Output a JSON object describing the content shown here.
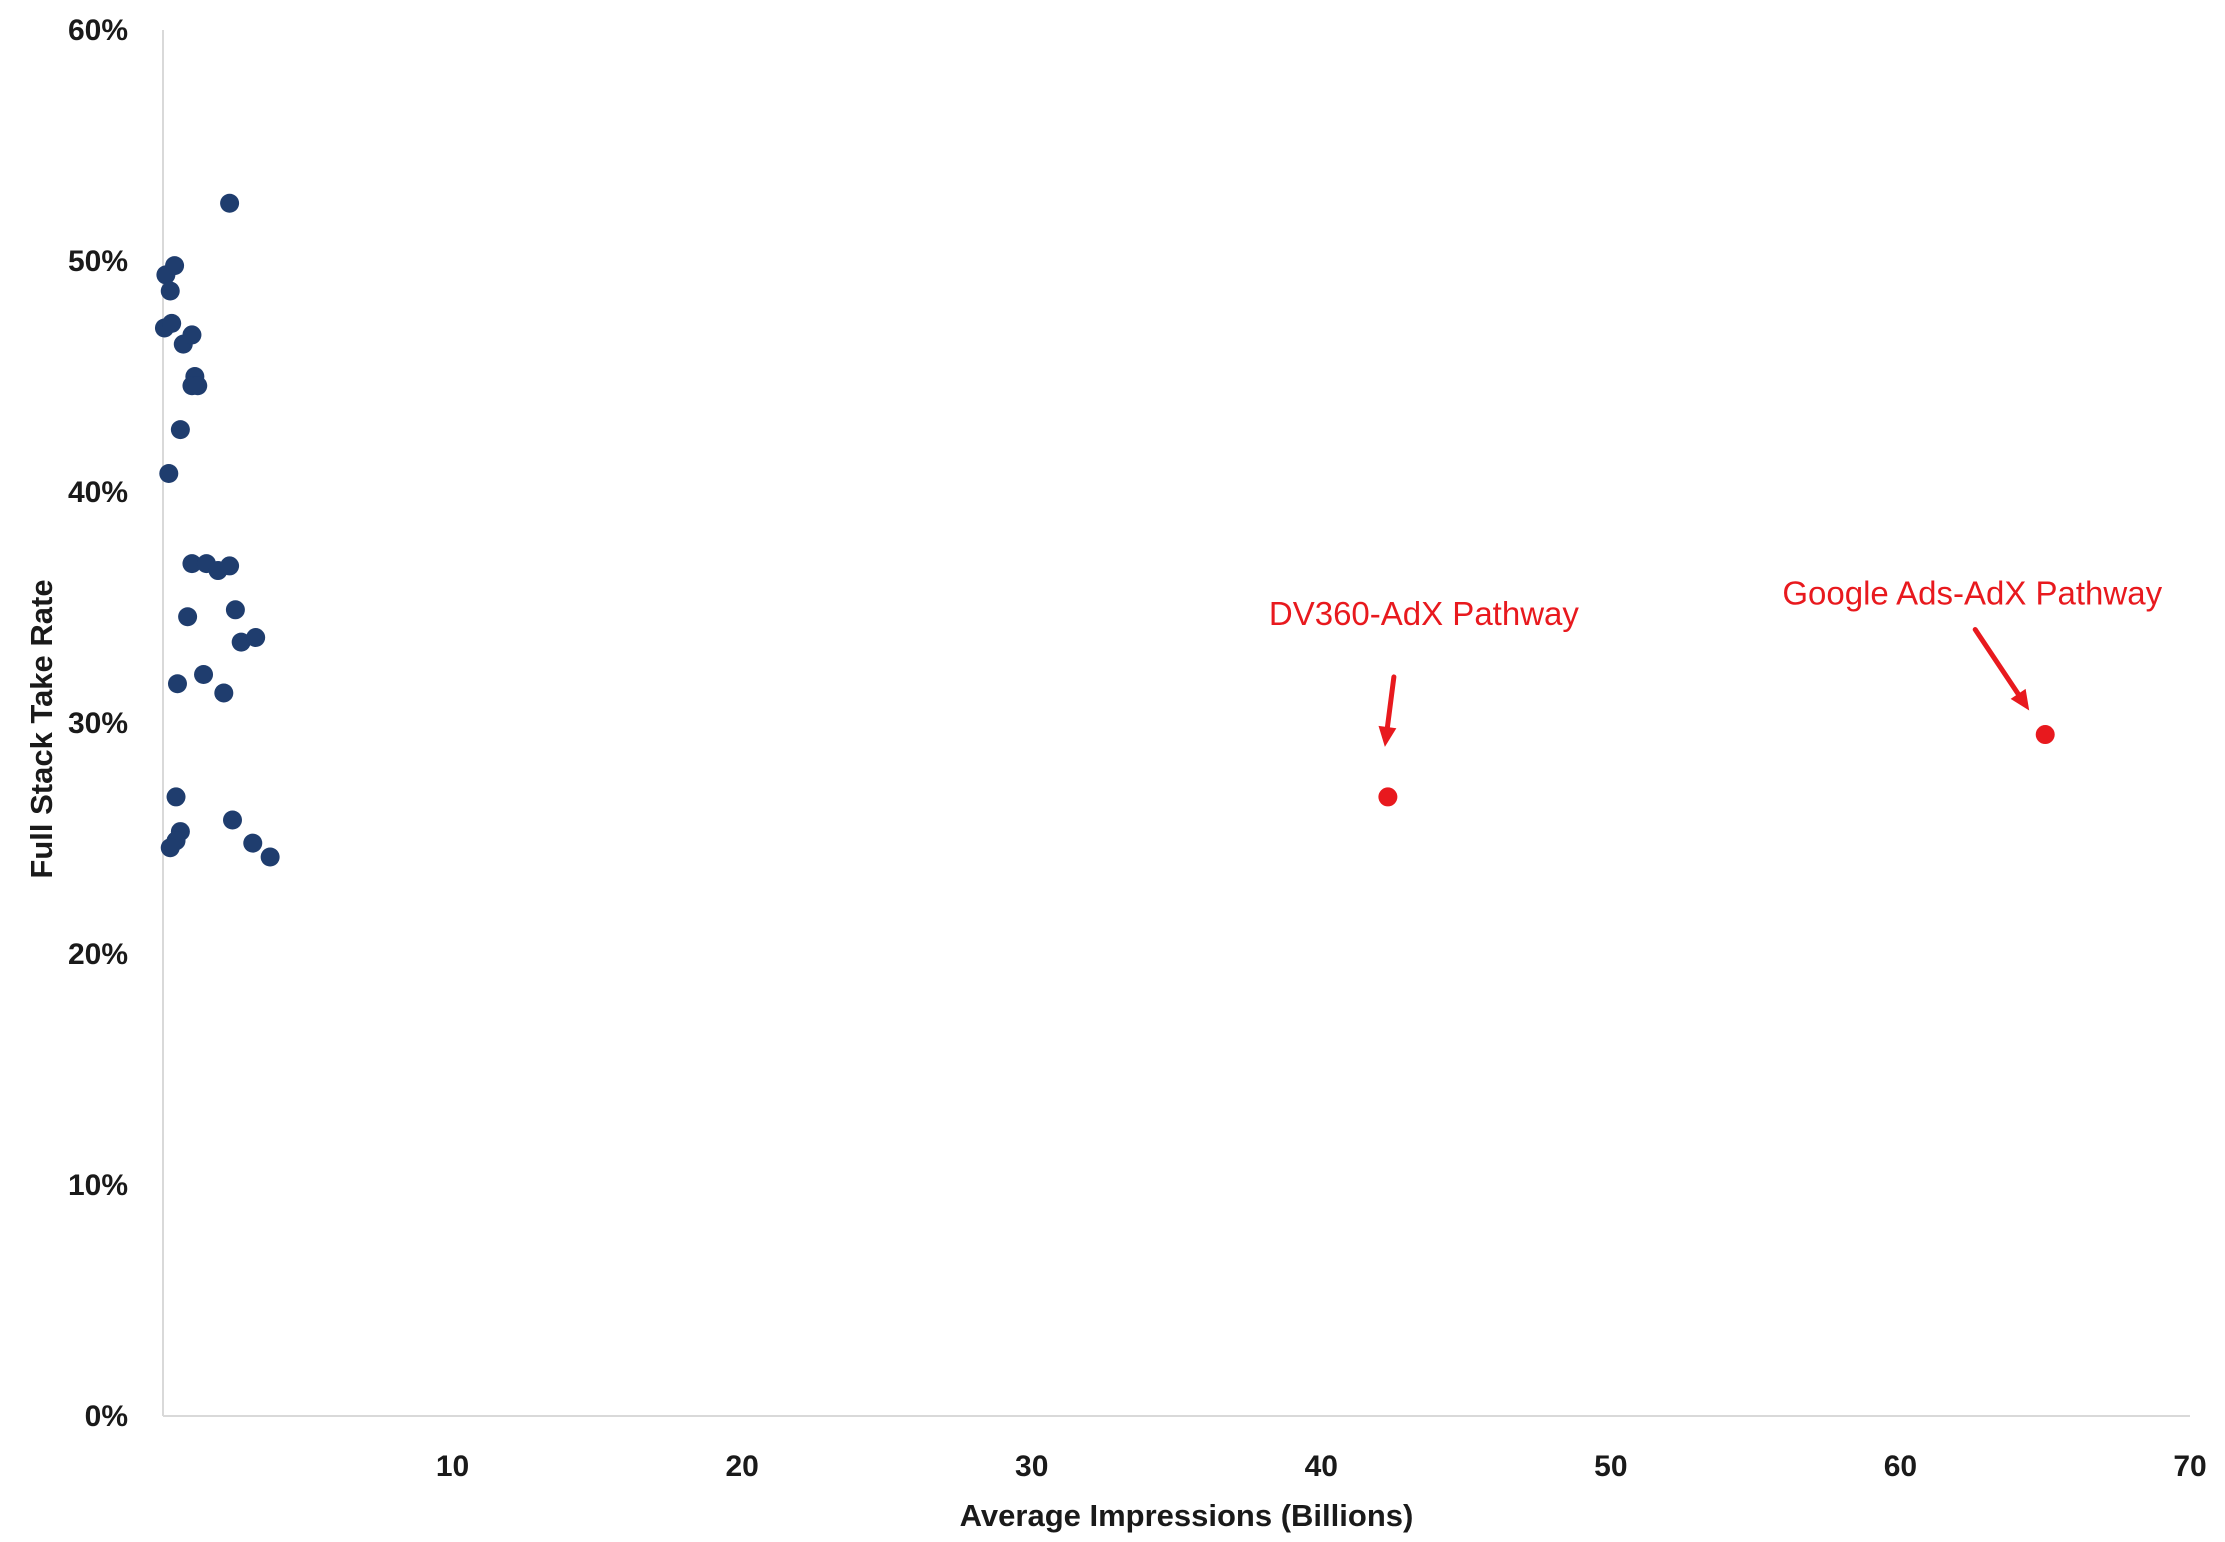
{
  "chart_data": {
    "type": "scatter",
    "title": "",
    "xlabel": "Average Impressions (Billions)",
    "ylabel": "Full Stack Take Rate",
    "xlim": [
      0,
      70
    ],
    "ylim": [
      0,
      60
    ],
    "x_ticks": [
      "10",
      "20",
      "30",
      "40",
      "50",
      "60",
      "70"
    ],
    "y_ticks": [
      "0%",
      "10%",
      "20%",
      "30%",
      "40%",
      "50%",
      "60%"
    ],
    "grid": false,
    "legend": "none",
    "colors": {
      "series": "#1f3d6e",
      "highlight": "#e8191e",
      "axis": "#d9d9d9"
    },
    "series": [
      {
        "color": "#1f3d6e",
        "points": [
          {
            "x": 2.3,
            "y": 52.5
          },
          {
            "x": 0.1,
            "y": 49.4
          },
          {
            "x": 0.4,
            "y": 49.8
          },
          {
            "x": 0.25,
            "y": 48.7
          },
          {
            "x": 0.05,
            "y": 47.1
          },
          {
            "x": 0.3,
            "y": 47.3
          },
          {
            "x": 0.7,
            "y": 46.4
          },
          {
            "x": 1.0,
            "y": 46.8
          },
          {
            "x": 1.1,
            "y": 45.0
          },
          {
            "x": 1.0,
            "y": 44.6
          },
          {
            "x": 1.2,
            "y": 44.6
          },
          {
            "x": 0.6,
            "y": 42.7
          },
          {
            "x": 0.2,
            "y": 40.8
          },
          {
            "x": 1.0,
            "y": 36.9
          },
          {
            "x": 1.5,
            "y": 36.9
          },
          {
            "x": 1.9,
            "y": 36.6
          },
          {
            "x": 2.3,
            "y": 36.8
          },
          {
            "x": 0.85,
            "y": 34.6
          },
          {
            "x": 2.5,
            "y": 34.9
          },
          {
            "x": 2.7,
            "y": 33.5
          },
          {
            "x": 3.2,
            "y": 33.7
          },
          {
            "x": 1.4,
            "y": 32.1
          },
          {
            "x": 0.5,
            "y": 31.7
          },
          {
            "x": 2.1,
            "y": 31.3
          },
          {
            "x": 0.45,
            "y": 26.8
          },
          {
            "x": 2.4,
            "y": 25.8
          },
          {
            "x": 0.6,
            "y": 25.3
          },
          {
            "x": 0.45,
            "y": 24.9
          },
          {
            "x": 0.25,
            "y": 24.6
          },
          {
            "x": 3.1,
            "y": 24.8
          },
          {
            "x": 3.7,
            "y": 24.2
          }
        ]
      }
    ],
    "annotations": [
      {
        "label": "DV360-AdX Pathway",
        "x": 42.3,
        "y": 26.8
      },
      {
        "label": "Google Ads-AdX Pathway",
        "x": 65.0,
        "y": 29.5
      }
    ]
  }
}
